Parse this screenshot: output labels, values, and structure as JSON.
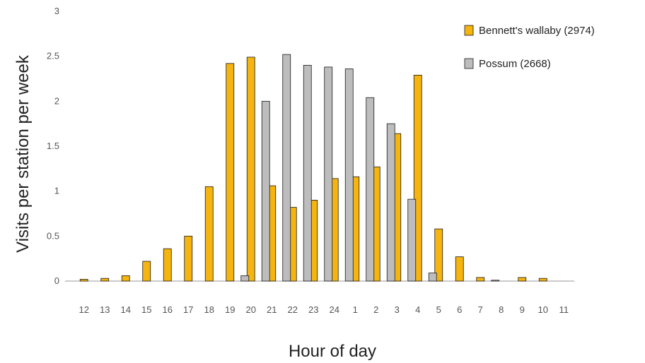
{
  "chart_data": {
    "type": "bar",
    "title": "",
    "xlabel": "Hour of day",
    "ylabel": "Visits per station per week",
    "ylim": [
      0,
      3
    ],
    "yticks": [
      "0",
      "0.5",
      "1",
      "1.5",
      "2",
      "2.5",
      "3"
    ],
    "categories": [
      "12",
      "13",
      "14",
      "15",
      "16",
      "17",
      "18",
      "19",
      "20",
      "21",
      "22",
      "23",
      "24",
      "1",
      "2",
      "3",
      "4",
      "5",
      "6",
      "7",
      "8",
      "9",
      "10",
      "11"
    ],
    "series": [
      {
        "name": "Bennett's wallaby (2974)",
        "color": "#F5B40F",
        "values": [
          0.02,
          0.03,
          0.06,
          0.22,
          0.36,
          0.5,
          1.05,
          2.42,
          2.49,
          1.06,
          0.82,
          0.9,
          1.14,
          1.16,
          1.27,
          1.64,
          2.29,
          0.58,
          0.27,
          0.04,
          null,
          0.04,
          0.03,
          null
        ]
      },
      {
        "name": "Possum (2668)",
        "color": "#BDBDBD",
        "values": [
          null,
          null,
          null,
          null,
          null,
          null,
          null,
          null,
          0.06,
          2.0,
          2.52,
          2.4,
          2.38,
          2.36,
          2.04,
          1.75,
          0.91,
          0.09,
          null,
          null,
          0.01,
          null,
          null,
          null
        ]
      }
    ],
    "legend_position": "top-right",
    "grid": false
  }
}
